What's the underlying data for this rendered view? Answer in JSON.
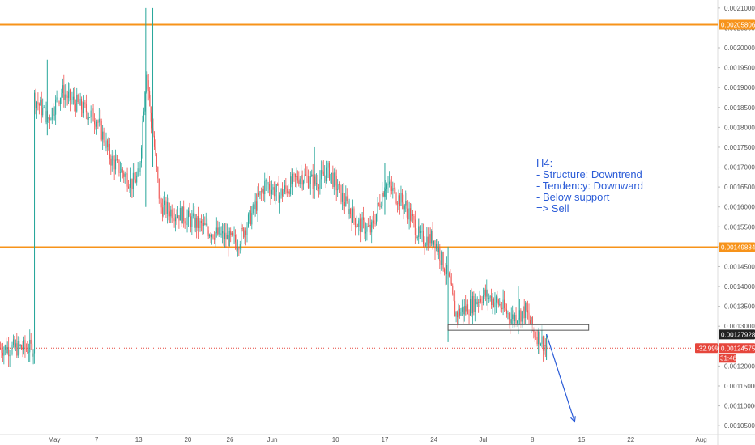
{
  "colors": {
    "up": "#26a69a",
    "down": "#ef5350",
    "level": "#f7931a",
    "price_tag": "#e6463c",
    "current_tag": "#222222",
    "annotation": "#2a5bd7",
    "axis_text": "#555555"
  },
  "chart_data": {
    "type": "candlestick",
    "title": "",
    "xlabel": "",
    "ylabel": "",
    "x_ticks": [
      "May",
      "7",
      "13",
      "20",
      "26",
      "Jun",
      "10",
      "17",
      "24",
      "Jul",
      "8",
      "15",
      "22",
      "Aug"
    ],
    "y_ticks": [
      "0.00210000",
      "0.00205000",
      "0.00200000",
      "0.00195000",
      "0.00190000",
      "0.00185000",
      "0.00180000",
      "0.00175000",
      "0.00170000",
      "0.00165000",
      "0.00160000",
      "0.00155000",
      "0.00150000",
      "0.00145000",
      "0.00140000",
      "0.00135000",
      "0.00130000",
      "0.00125000",
      "0.00120000",
      "0.00115000",
      "0.00110000",
      "0.00105000"
    ],
    "ylim": [
      0.00103,
      0.00212
    ],
    "levels": [
      {
        "label": "0.00205806",
        "value": 0.00205806
      },
      {
        "label": "0.00149884",
        "value": 0.00149884
      }
    ],
    "current_price_label": "0.00127928",
    "last_price": {
      "label": "0.00124575",
      "change": "-32.99%",
      "countdown": "31:46"
    },
    "support_box": {
      "from": "Jun 26",
      "to": "Jul 16",
      "low": 0.00129,
      "high": 0.001304
    },
    "projection_arrow": {
      "from": {
        "x": "Jul 10",
        "y": 0.00128
      },
      "to": {
        "x": "Jul 14",
        "y": 0.00106
      }
    },
    "trend_anchors": [
      {
        "x": "Apr 28",
        "y": 0.00188
      },
      {
        "x": "Apr 30",
        "y": 0.00182
      },
      {
        "x": "May 2",
        "y": 0.00189
      },
      {
        "x": "May 4",
        "y": 0.00186
      },
      {
        "x": "May 7",
        "y": 0.00182
      },
      {
        "x": "May 9",
        "y": 0.00172
      },
      {
        "x": "May 12",
        "y": 0.00166
      },
      {
        "x": "May 13",
        "y": 0.00168
      },
      {
        "x": "May 14",
        "y": 0.00195
      },
      {
        "x": "May 15",
        "y": 0.00178
      },
      {
        "x": "May 16",
        "y": 0.0016
      },
      {
        "x": "May 19",
        "y": 0.00158
      },
      {
        "x": "May 23",
        "y": 0.00154
      },
      {
        "x": "May 27",
        "y": 0.00151
      },
      {
        "x": "May 29",
        "y": 0.00158
      },
      {
        "x": "May 31",
        "y": 0.00166
      },
      {
        "x": "Jun 2",
        "y": 0.00163
      },
      {
        "x": "Jun 5",
        "y": 0.00168
      },
      {
        "x": "Jun 7",
        "y": 0.00166
      },
      {
        "x": "Jun 9",
        "y": 0.00169
      },
      {
        "x": "Jun 11",
        "y": 0.00162
      },
      {
        "x": "Jun 13",
        "y": 0.00156
      },
      {
        "x": "Jun 15",
        "y": 0.00154
      },
      {
        "x": "Jun 17",
        "y": 0.00166
      },
      {
        "x": "Jun 20",
        "y": 0.0016
      },
      {
        "x": "Jun 22",
        "y": 0.00152
      },
      {
        "x": "Jun 24",
        "y": 0.00152
      },
      {
        "x": "Jun 26",
        "y": 0.00142
      },
      {
        "x": "Jun 27",
        "y": 0.00133
      },
      {
        "x": "Jun 29",
        "y": 0.00135
      },
      {
        "x": "Jul 1",
        "y": 0.00138
      },
      {
        "x": "Jul 3",
        "y": 0.00136
      },
      {
        "x": "Jul 5",
        "y": 0.00132
      },
      {
        "x": "Jul 7",
        "y": 0.00134
      },
      {
        "x": "Jul 8",
        "y": 0.00129
      },
      {
        "x": "Jul 9",
        "y": 0.00127
      },
      {
        "x": "Jul 10",
        "y": 0.001245
      }
    ],
    "spikes": [
      {
        "x": "Apr 30",
        "high": 0.00197,
        "low": 0.00178
      },
      {
        "x": "May 14",
        "high": 0.0021,
        "low": 0.0016
      },
      {
        "x": "May 15",
        "high": 0.0021,
        "low": 0.0017
      },
      {
        "x": "Jun 7",
        "high": 0.00175,
        "low": 0.00162
      },
      {
        "x": "Jun 17",
        "high": 0.00171,
        "low": 0.00158
      },
      {
        "x": "Jun 26",
        "high": 0.0015,
        "low": 0.00126
      },
      {
        "x": "Jul 6",
        "high": 0.0014,
        "low": 0.00128
      },
      {
        "x": "Jul 10",
        "high": 0.00128,
        "low": 0.001215
      }
    ]
  },
  "annotation": {
    "lines": [
      "H4:",
      "- Structure: Downtrend",
      "- Tendency: Downward",
      "- Below support",
      "=> Sell"
    ]
  }
}
